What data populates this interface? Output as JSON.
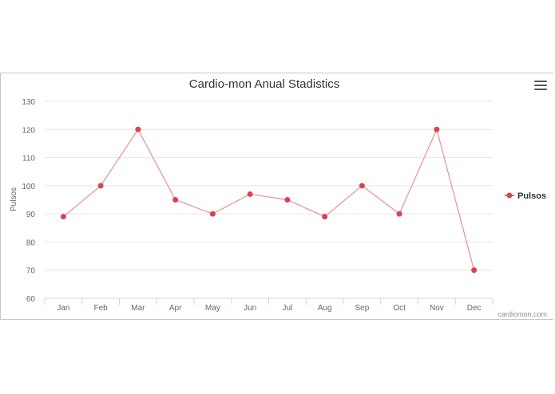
{
  "chart_data": {
    "type": "line",
    "title": "Cardio-mon Anual Stadistics",
    "xlabel": "",
    "ylabel": "Pulsos",
    "categories": [
      "Jan",
      "Feb",
      "Mar",
      "Apr",
      "May",
      "Jun",
      "Jul",
      "Aug",
      "Sep",
      "Oct",
      "Nov",
      "Dec"
    ],
    "series": [
      {
        "name": "Pulsos",
        "values": [
          89,
          100,
          120,
          95,
          90,
          97,
          95,
          89,
          100,
          90,
          120,
          70
        ]
      }
    ],
    "ylim": [
      60,
      130
    ],
    "yticks": [
      60,
      70,
      80,
      90,
      100,
      110,
      120,
      130
    ],
    "grid": true,
    "legend_position": "right",
    "colors": {
      "series": "#d9434f",
      "line": "#e89096",
      "grid": "#e6e6e6",
      "axis": "#ccd6eb",
      "text": "#666666",
      "title": "#333333"
    }
  },
  "menu": {
    "icon": "hamburger-menu-icon"
  },
  "credits": "cardiomon.com"
}
